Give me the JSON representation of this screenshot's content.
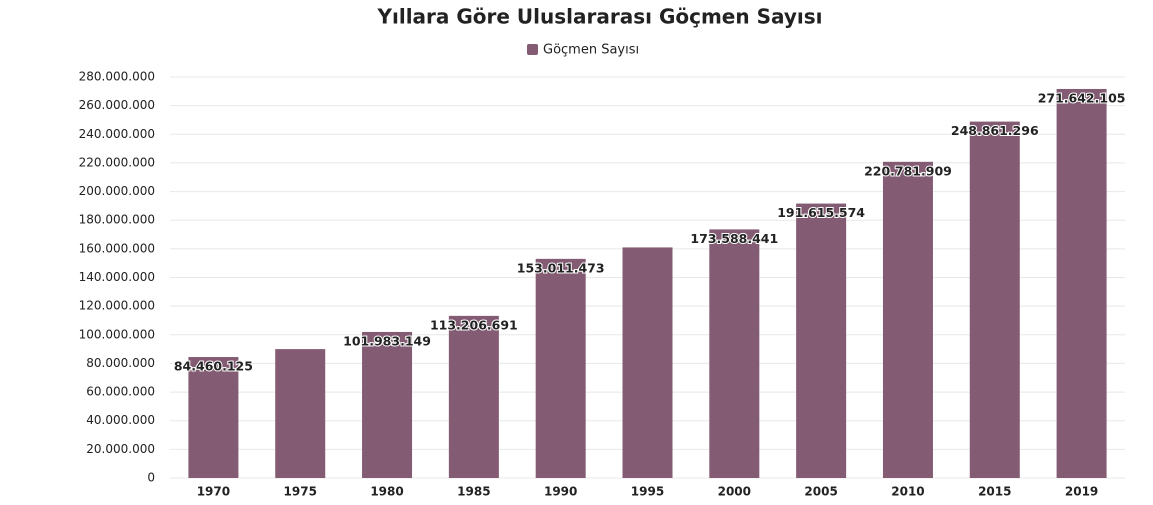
{
  "chart_data": {
    "type": "bar",
    "title": "Yıllara Göre Uluslararası Göçmen Sayısı",
    "categories": [
      "1970",
      "1975",
      "1980",
      "1985",
      "1990",
      "1995",
      "2000",
      "2005",
      "2010",
      "2015",
      "2019"
    ],
    "series": [
      {
        "name": "Göçmen Sayısı",
        "color": "#835b73",
        "values": [
          84460125,
          90000000,
          101983149,
          113206691,
          153011473,
          161000000,
          173588441,
          191615574,
          220781909,
          248861296,
          271642105
        ],
        "value_labels": [
          "84.460.125",
          null,
          "101.983.149",
          "113.206.691",
          "153.011.473",
          null,
          "173.588.441",
          "191.615.574",
          "220.781.909",
          "248.861.296",
          "271.642.105"
        ]
      }
    ],
    "ylim": [
      0,
      280000000
    ],
    "yticks": [
      0,
      {
        "value": 20000000,
        "label": "20.000.000"
      },
      {
        "value": 40000000,
        "label": "40.000.000"
      },
      {
        "value": 60000000,
        "label": "60.000.000"
      },
      {
        "value": 80000000,
        "label": "80.000.000"
      },
      {
        "value": 100000000,
        "label": "100.000.000"
      },
      {
        "value": 120000000,
        "label": "120.000.000"
      },
      {
        "value": 140000000,
        "label": "140.000.000"
      },
      {
        "value": 160000000,
        "label": "160.000.000"
      },
      {
        "value": 180000000,
        "label": "180.000.000"
      },
      {
        "value": 200000000,
        "label": "200.000.000"
      },
      {
        "value": 220000000,
        "label": "220.000.000"
      },
      {
        "value": 240000000,
        "label": "240.000.000"
      },
      {
        "value": 260000000,
        "label": "260.000.000"
      },
      {
        "value": 280000000,
        "label": "280.000.000"
      }
    ],
    "grid": true
  }
}
